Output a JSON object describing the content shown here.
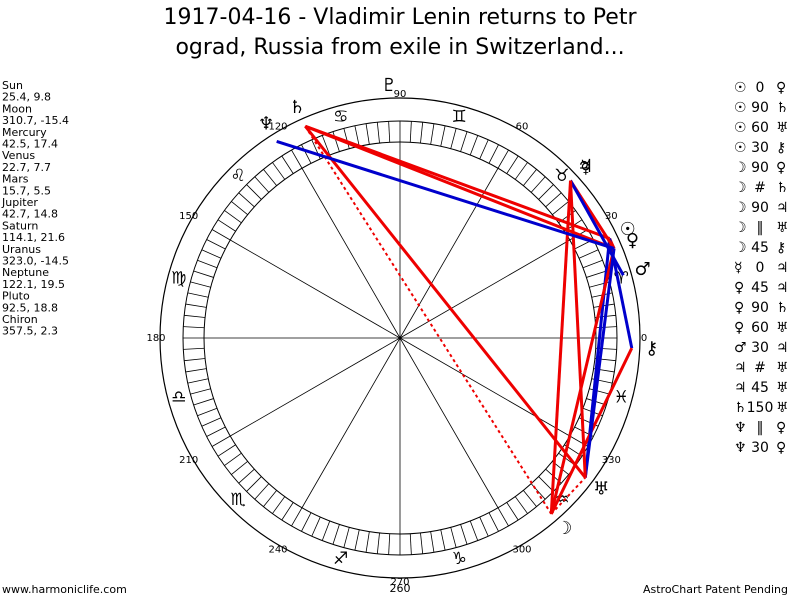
{
  "title": [
    "1917-04-16 - Vladimir Lenin returns to Petr",
    "ograd, Russia from exile in Switzerland..."
  ],
  "planets": [
    {
      "name": "Sun",
      "glyph": "☉",
      "position": "25.4, 9.8"
    },
    {
      "name": "Moon",
      "glyph": "☽",
      "position": "310.7, -15.4"
    },
    {
      "name": "Mercury",
      "glyph": "☿",
      "position": "42.5, 17.4"
    },
    {
      "name": "Venus",
      "glyph": "♀",
      "position": "22.7, 7.7"
    },
    {
      "name": "Mars",
      "glyph": "♂",
      "position": "15.7, 5.5"
    },
    {
      "name": "Jupiter",
      "glyph": "♃",
      "position": "42.7, 14.8"
    },
    {
      "name": "Saturn",
      "glyph": "♄",
      "position": "114.1, 21.6"
    },
    {
      "name": "Uranus",
      "glyph": "♅",
      "position": "323.0, -14.5"
    },
    {
      "name": "Neptune",
      "glyph": "♆",
      "position": "122.1, 19.5"
    },
    {
      "name": "Pluto",
      "glyph": "♇",
      "position": "92.5, 18.8"
    },
    {
      "name": "Chiron",
      "glyph": "⚷",
      "position": "357.5, 2.3"
    }
  ],
  "signs": [
    "♈",
    "♉",
    "♊",
    "♋",
    "♌",
    "♍",
    "♎",
    "♏",
    "♐",
    "♑",
    "♒",
    "♓"
  ],
  "degree_labels": [
    "0",
    "30",
    "60",
    "90",
    "120",
    "150",
    "180",
    "210",
    "240",
    "270",
    "300",
    "330"
  ],
  "aspects": [
    {
      "p1": "☉",
      "aspect": "0",
      "p2": "♀"
    },
    {
      "p1": "☉",
      "aspect": "90",
      "p2": "♄"
    },
    {
      "p1": "☉",
      "aspect": "60",
      "p2": "♅"
    },
    {
      "p1": "☉",
      "aspect": "30",
      "p2": "⚷"
    },
    {
      "p1": "☽",
      "aspect": "90",
      "p2": "♀"
    },
    {
      "p1": "☽",
      "aspect": "#",
      "p2": "♄"
    },
    {
      "p1": "☽",
      "aspect": "90",
      "p2": "♃"
    },
    {
      "p1": "☽",
      "aspect": "‖",
      "p2": "♅"
    },
    {
      "p1": "☽",
      "aspect": "45",
      "p2": "⚷"
    },
    {
      "p1": "☿",
      "aspect": "0",
      "p2": "♃"
    },
    {
      "p1": "♀",
      "aspect": "45",
      "p2": "♃"
    },
    {
      "p1": "♀",
      "aspect": "90",
      "p2": "♄"
    },
    {
      "p1": "♀",
      "aspect": "60",
      "p2": "♅"
    },
    {
      "p1": "♂",
      "aspect": "30",
      "p2": "♃"
    },
    {
      "p1": "♃",
      "aspect": "#",
      "p2": "♅"
    },
    {
      "p1": "♃",
      "aspect": "45",
      "p2": "♅"
    },
    {
      "p1": "♄",
      "aspect": "150",
      "p2": "♅"
    },
    {
      "p1": "♆",
      "aspect": "‖",
      "p2": "♀"
    },
    {
      "p1": "♆",
      "aspect": "30",
      "p2": "♀"
    }
  ],
  "bottom_label": "260",
  "footer": {
    "left": "www.harmoniclife.com",
    "right": "AstroChart Patent Pending"
  }
}
